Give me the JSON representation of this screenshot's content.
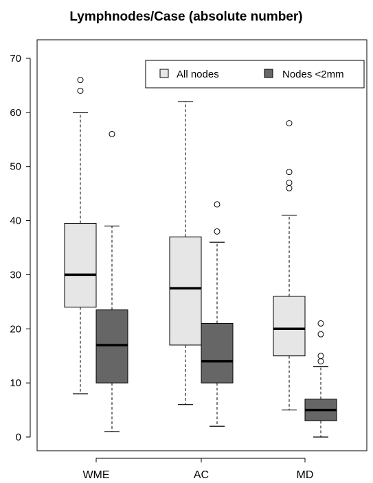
{
  "chart_data": {
    "type": "boxplot",
    "title": "Lymphnodes/Case (absolute number)",
    "xlabel": "",
    "ylabel": "",
    "ylim": [
      0,
      70
    ],
    "yticks": [
      0,
      10,
      20,
      30,
      40,
      50,
      60,
      70
    ],
    "categories": [
      "WME",
      "AC",
      "MD"
    ],
    "legend": {
      "position": "top-right",
      "entries": [
        "All nodes",
        "Nodes <2mm"
      ]
    },
    "colors": {
      "All nodes": "#e6e6e6",
      "Nodes <2mm": "#666666"
    },
    "series": [
      {
        "name": "All nodes",
        "boxes": [
          {
            "whisker_low": 8,
            "q1": 24,
            "median": 30,
            "q3": 39.5,
            "whisker_high": 60,
            "outliers": [
              64,
              66
            ]
          },
          {
            "whisker_low": 6,
            "q1": 17,
            "median": 27.5,
            "q3": 37,
            "whisker_high": 62,
            "outliers": []
          },
          {
            "whisker_low": 5,
            "q1": 15,
            "median": 20,
            "q3": 26,
            "whisker_high": 41,
            "outliers": [
              46,
              47,
              49,
              58
            ]
          }
        ]
      },
      {
        "name": "Nodes <2mm",
        "boxes": [
          {
            "whisker_low": 1,
            "q1": 10,
            "median": 17,
            "q3": 23.5,
            "whisker_high": 39,
            "outliers": [
              56
            ]
          },
          {
            "whisker_low": 2,
            "q1": 10,
            "median": 14,
            "q3": 21,
            "whisker_high": 36,
            "outliers": [
              38,
              43
            ]
          },
          {
            "whisker_low": 0,
            "q1": 3,
            "median": 5,
            "q3": 7,
            "whisker_high": 13,
            "outliers": [
              14,
              15,
              19,
              21
            ]
          }
        ]
      }
    ]
  }
}
